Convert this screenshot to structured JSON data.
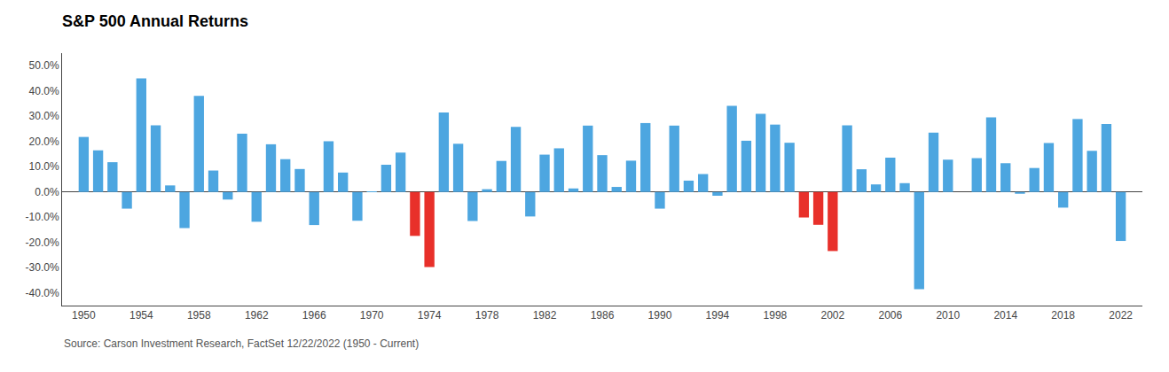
{
  "chart_data": {
    "type": "bar",
    "title": "S&P 500 Annual Returns",
    "annotations": [
      "Source: Carson Investment Research, FactSet 12/22/2022 (1950 - Current)"
    ],
    "x": [
      1950,
      1951,
      1952,
      1953,
      1954,
      1955,
      1956,
      1957,
      1958,
      1959,
      1960,
      1961,
      1962,
      1963,
      1964,
      1965,
      1966,
      1967,
      1968,
      1969,
      1970,
      1971,
      1972,
      1973,
      1974,
      1975,
      1976,
      1977,
      1978,
      1979,
      1980,
      1981,
      1982,
      1983,
      1984,
      1985,
      1986,
      1987,
      1988,
      1989,
      1990,
      1991,
      1992,
      1993,
      1994,
      1995,
      1996,
      1997,
      1998,
      1999,
      2000,
      2001,
      2002,
      2003,
      2004,
      2005,
      2006,
      2007,
      2008,
      2009,
      2010,
      2011,
      2012,
      2013,
      2014,
      2015,
      2016,
      2017,
      2018,
      2019,
      2020,
      2021,
      2022
    ],
    "values": [
      21.8,
      16.5,
      11.8,
      -6.6,
      45.0,
      26.4,
      2.6,
      -14.3,
      38.1,
      8.5,
      -3.0,
      23.1,
      -11.8,
      18.9,
      13.0,
      9.1,
      -13.1,
      20.1,
      7.7,
      -11.4,
      0.1,
      10.8,
      15.6,
      -17.4,
      -29.7,
      31.5,
      19.1,
      -11.5,
      1.1,
      12.3,
      25.8,
      -9.7,
      14.8,
      17.3,
      1.4,
      26.3,
      14.6,
      2.0,
      12.4,
      27.3,
      -6.6,
      26.3,
      4.5,
      7.1,
      -1.5,
      34.1,
      20.3,
      31.0,
      26.7,
      19.5,
      -10.1,
      -13.0,
      -23.4,
      26.4,
      9.0,
      3.0,
      13.6,
      3.5,
      -38.5,
      23.5,
      12.8,
      0.0,
      13.4,
      29.6,
      11.4,
      -0.7,
      9.5,
      19.4,
      -6.2,
      28.9,
      16.3,
      26.9,
      -19.4
    ],
    "colors": [
      "#4DA6E0",
      "#4DA6E0",
      "#4DA6E0",
      "#4DA6E0",
      "#4DA6E0",
      "#4DA6E0",
      "#4DA6E0",
      "#4DA6E0",
      "#4DA6E0",
      "#4DA6E0",
      "#4DA6E0",
      "#4DA6E0",
      "#4DA6E0",
      "#4DA6E0",
      "#4DA6E0",
      "#4DA6E0",
      "#4DA6E0",
      "#4DA6E0",
      "#4DA6E0",
      "#4DA6E0",
      "#4DA6E0",
      "#4DA6E0",
      "#4DA6E0",
      "#E8302A",
      "#E8302A",
      "#4DA6E0",
      "#4DA6E0",
      "#4DA6E0",
      "#4DA6E0",
      "#4DA6E0",
      "#4DA6E0",
      "#4DA6E0",
      "#4DA6E0",
      "#4DA6E0",
      "#4DA6E0",
      "#4DA6E0",
      "#4DA6E0",
      "#4DA6E0",
      "#4DA6E0",
      "#4DA6E0",
      "#4DA6E0",
      "#4DA6E0",
      "#4DA6E0",
      "#4DA6E0",
      "#4DA6E0",
      "#4DA6E0",
      "#4DA6E0",
      "#4DA6E0",
      "#4DA6E0",
      "#4DA6E0",
      "#E8302A",
      "#E8302A",
      "#E8302A",
      "#4DA6E0",
      "#4DA6E0",
      "#4DA6E0",
      "#4DA6E0",
      "#4DA6E0",
      "#4DA6E0",
      "#4DA6E0",
      "#4DA6E0",
      "#4DA6E0",
      "#4DA6E0",
      "#4DA6E0",
      "#4DA6E0",
      "#4DA6E0",
      "#4DA6E0",
      "#4DA6E0",
      "#4DA6E0",
      "#4DA6E0",
      "#4DA6E0",
      "#4DA6E0",
      "#4DA6E0"
    ],
    "xlim": [
      1948.5,
      2023.5
    ],
    "xticks": [
      1950,
      1954,
      1958,
      1962,
      1966,
      1970,
      1974,
      1978,
      1982,
      1986,
      1990,
      1994,
      1998,
      2002,
      2006,
      2010,
      2014,
      2018,
      2022
    ],
    "ylim": [
      -45,
      55
    ],
    "yticks": [
      {
        "value": -40.0,
        "label": "-40.0%"
      },
      {
        "value": -30.0,
        "label": "-30.0%"
      },
      {
        "value": -20.0,
        "label": "-20.0%"
      },
      {
        "value": -10.0,
        "label": "-10.0%"
      },
      {
        "value": 0.0,
        "label": "0.0%"
      },
      {
        "value": 10.0,
        "label": "10.0%"
      },
      {
        "value": 20.0,
        "label": "20.0%"
      },
      {
        "value": 30.0,
        "label": "30.0%"
      },
      {
        "value": 40.0,
        "label": "40.0%"
      },
      {
        "value": 50.0,
        "label": "50.0%"
      }
    ],
    "grid": false
  }
}
